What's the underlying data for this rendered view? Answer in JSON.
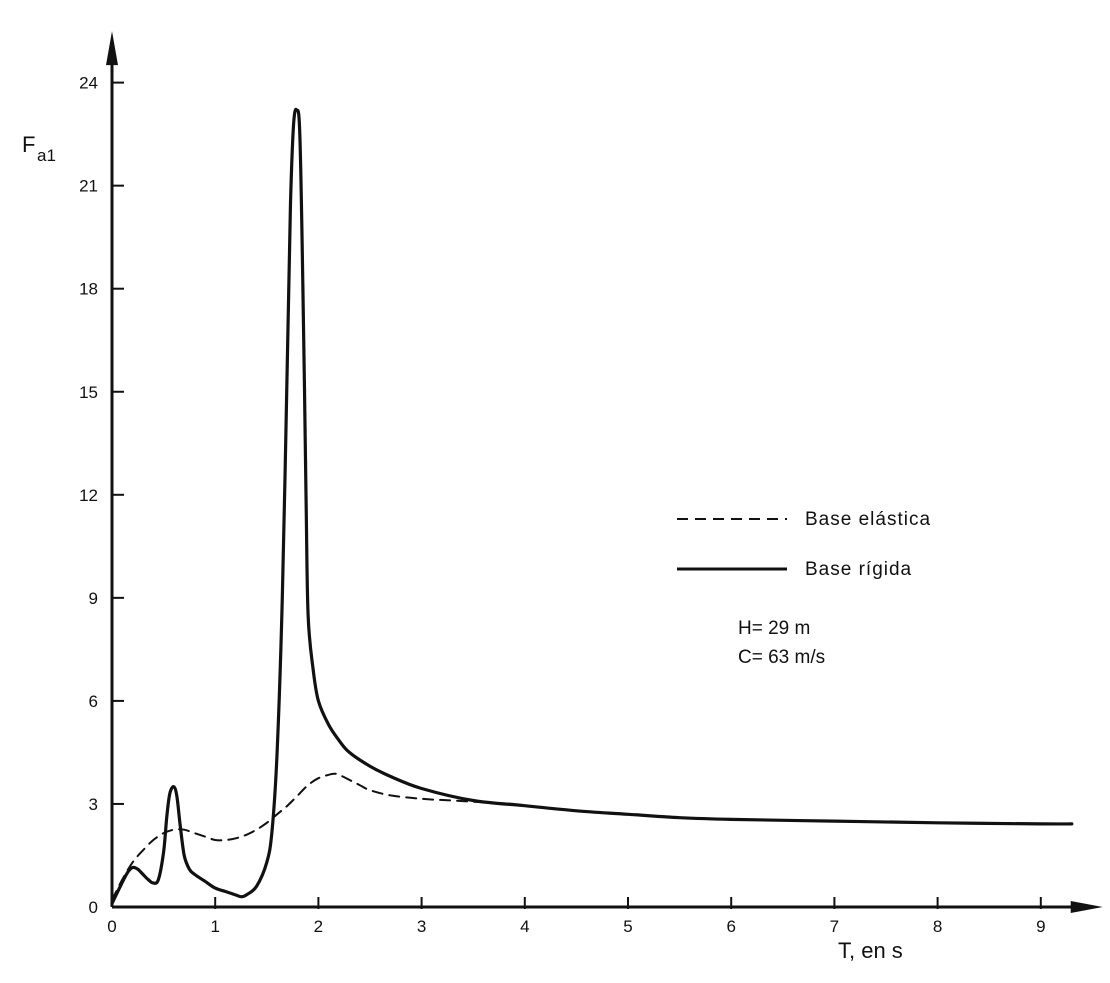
{
  "chart_data": {
    "type": "line",
    "title": "",
    "xlabel": "T, en s",
    "ylabel": "F",
    "ylabel_subscript": "a1",
    "xlim": [
      0,
      9.6
    ],
    "ylim": [
      0,
      25.5
    ],
    "x_ticks": [
      0,
      1,
      2,
      3,
      4,
      5,
      6,
      7,
      8,
      9
    ],
    "y_ticks": [
      0,
      3,
      6,
      9,
      12,
      15,
      18,
      21,
      24
    ],
    "grid": false,
    "legend_position": "right-middle",
    "series": [
      {
        "name": "Base elástica",
        "style": "dashed",
        "color": "#111111",
        "x": [
          0,
          0.1,
          0.2,
          0.3,
          0.4,
          0.5,
          0.6,
          0.7,
          0.8,
          0.9,
          1.0,
          1.1,
          1.2,
          1.3,
          1.4,
          1.5,
          1.6,
          1.7,
          1.8,
          1.9,
          2.0,
          2.1,
          2.15,
          2.2,
          2.3,
          2.4,
          2.5,
          2.7,
          3.0,
          3.3,
          3.6,
          3.9
        ],
        "y": [
          0.2,
          0.8,
          1.3,
          1.65,
          1.95,
          2.15,
          2.25,
          2.25,
          2.15,
          2.05,
          1.95,
          1.95,
          2.0,
          2.1,
          2.25,
          2.45,
          2.7,
          2.95,
          3.25,
          3.55,
          3.75,
          3.85,
          3.88,
          3.85,
          3.7,
          3.55,
          3.4,
          3.25,
          3.15,
          3.1,
          3.05,
          3.0
        ]
      },
      {
        "name": "Base rígida",
        "style": "solid",
        "color": "#111111",
        "x": [
          0,
          0.08,
          0.15,
          0.2,
          0.25,
          0.3,
          0.35,
          0.4,
          0.45,
          0.5,
          0.53,
          0.56,
          0.6,
          0.63,
          0.66,
          0.7,
          0.75,
          0.8,
          0.9,
          1.0,
          1.1,
          1.2,
          1.25,
          1.3,
          1.4,
          1.5,
          1.55,
          1.6,
          1.65,
          1.7,
          1.73,
          1.76,
          1.79,
          1.82,
          1.85,
          1.88,
          1.9,
          1.95,
          2.0,
          2.1,
          2.2,
          2.3,
          2.5,
          2.7,
          3.0,
          3.5,
          4.0,
          4.5,
          5.0,
          5.5,
          6.0,
          7.0,
          8.0,
          9.0,
          9.3
        ],
        "y": [
          0.1,
          0.6,
          1.0,
          1.15,
          1.1,
          0.95,
          0.8,
          0.7,
          0.8,
          1.6,
          2.6,
          3.3,
          3.5,
          3.2,
          2.4,
          1.5,
          1.1,
          0.95,
          0.75,
          0.55,
          0.45,
          0.35,
          0.3,
          0.35,
          0.6,
          1.3,
          2.2,
          4.5,
          9.0,
          16.0,
          20.5,
          22.8,
          23.2,
          22.5,
          18.0,
          12.0,
          8.5,
          6.9,
          6.0,
          5.3,
          4.85,
          4.5,
          4.1,
          3.8,
          3.45,
          3.1,
          2.95,
          2.8,
          2.7,
          2.6,
          2.55,
          2.5,
          2.45,
          2.42,
          2.42
        ]
      }
    ],
    "annotations": [
      "H= 29 m",
      "C= 63 m/s"
    ]
  }
}
